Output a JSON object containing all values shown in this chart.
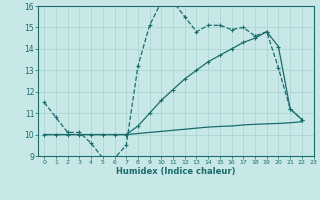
{
  "line1_x": [
    0,
    1,
    2,
    3,
    4,
    5,
    6,
    7,
    8,
    9,
    10,
    11,
    12,
    13,
    14,
    15,
    16,
    17,
    18,
    19,
    20,
    21,
    22
  ],
  "line1_y": [
    11.5,
    10.8,
    10.1,
    10.1,
    9.6,
    8.9,
    8.9,
    9.5,
    13.2,
    15.1,
    16.2,
    16.2,
    15.5,
    14.8,
    15.1,
    15.1,
    14.9,
    15.0,
    14.6,
    14.8,
    13.1,
    11.2,
    10.7
  ],
  "line2_x": [
    0,
    1,
    2,
    3,
    4,
    5,
    6,
    7,
    8,
    9,
    10,
    11,
    12,
    13,
    14,
    15,
    16,
    17,
    18,
    19,
    20,
    21,
    22
  ],
  "line2_y": [
    10.0,
    10.0,
    10.0,
    10.0,
    10.0,
    10.0,
    10.0,
    10.0,
    10.05,
    10.1,
    10.15,
    10.2,
    10.25,
    10.3,
    10.35,
    10.38,
    10.4,
    10.45,
    10.48,
    10.5,
    10.52,
    10.55,
    10.6
  ],
  "line3_x": [
    0,
    1,
    2,
    3,
    4,
    5,
    6,
    7,
    8,
    9,
    10,
    11,
    12,
    13,
    14,
    15,
    16,
    17,
    18,
    19,
    20,
    21,
    22
  ],
  "line3_y": [
    10.0,
    10.0,
    10.0,
    10.0,
    10.0,
    10.0,
    10.0,
    10.0,
    10.4,
    11.0,
    11.6,
    12.1,
    12.6,
    13.0,
    13.4,
    13.7,
    14.0,
    14.3,
    14.5,
    14.8,
    14.1,
    11.2,
    10.7
  ],
  "color": "#1a6b6b",
  "bg_color": "#c8e8e8",
  "grid_color": "#a8d0d0",
  "xlabel": "Humidex (Indice chaleur)",
  "ylim": [
    9,
    16
  ],
  "xlim": [
    -0.5,
    23
  ],
  "yticks": [
    9,
    10,
    11,
    12,
    13,
    14,
    15,
    16
  ],
  "xticks": [
    0,
    1,
    2,
    3,
    4,
    5,
    6,
    7,
    8,
    9,
    10,
    11,
    12,
    13,
    14,
    15,
    16,
    17,
    18,
    19,
    20,
    21,
    22,
    23
  ]
}
